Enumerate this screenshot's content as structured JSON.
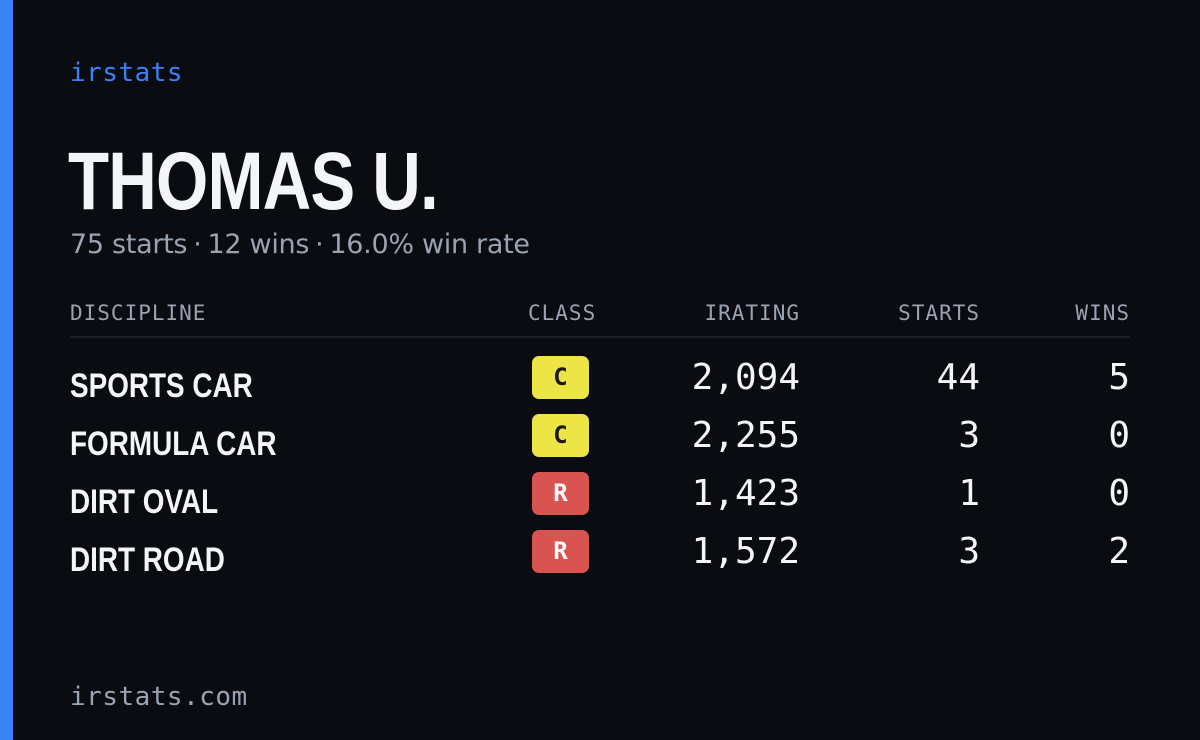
{
  "brand": "irstats",
  "player": {
    "name": "THOMAS U.",
    "starts_text": "75 starts",
    "wins_text": "12 wins",
    "win_rate_text": "16.0% win rate",
    "separator": "·"
  },
  "table": {
    "headers": {
      "discipline": "DISCIPLINE",
      "class": "CLASS",
      "irating": "IRATING",
      "starts": "STARTS",
      "wins": "WINS"
    },
    "rows": [
      {
        "discipline": "SPORTS CAR",
        "class": "C",
        "irating": "2,094",
        "starts": "44",
        "wins": "5"
      },
      {
        "discipline": "FORMULA CAR",
        "class": "C",
        "irating": "2,255",
        "starts": "3",
        "wins": "0"
      },
      {
        "discipline": "DIRT OVAL",
        "class": "R",
        "irating": "1,423",
        "starts": "1",
        "wins": "0"
      },
      {
        "discipline": "DIRT ROAD",
        "class": "R",
        "irating": "1,572",
        "starts": "3",
        "wins": "2"
      }
    ]
  },
  "footer": "irstats.com",
  "colors": {
    "background": "#0a0c12",
    "accent": "#3b82f6",
    "class_c": "#ede445",
    "class_r": "#d95350",
    "muted_text": "#9aa3b2"
  }
}
